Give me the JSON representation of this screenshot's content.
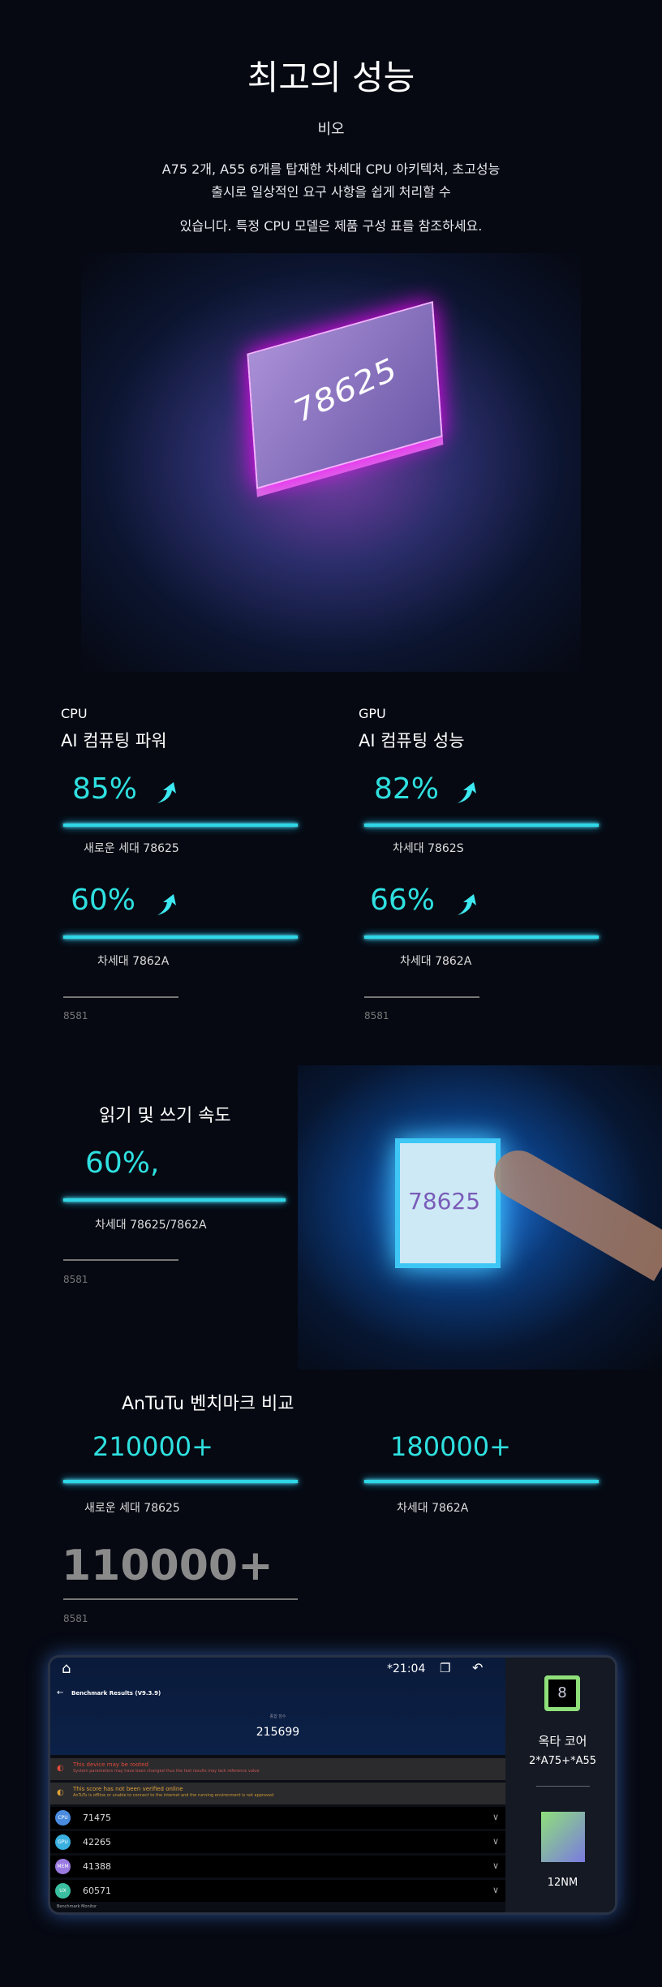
{
  "header": {
    "title": "최고의 성능",
    "subtitle": "비오",
    "para": [
      "A75 2개, A55 6개를 탑재한 차세대 CPU 아키텍처, 초고성능",
      "출시로 일상적인 요구 사항을 쉽게 처리할 수",
      "있습니다. 특정 CPU 모델은 제품 구성 표를 참조하세요."
    ],
    "chip_label": "78625"
  },
  "cpu": {
    "label": "CPU",
    "title": "AI 컴퓨팅 파워",
    "items": [
      {
        "value": "85%",
        "name": "새로운 세대 78625"
      },
      {
        "value": "60%",
        "name": "차세대 7862A"
      }
    ],
    "footer": "8581"
  },
  "gpu": {
    "label": "GPU",
    "title": "AI 컴퓨팅 성능",
    "items": [
      {
        "value": "82%",
        "name": "차세대 7862S"
      },
      {
        "value": "66%",
        "name": "차세대 7862A"
      }
    ],
    "footer": "8581"
  },
  "rw": {
    "title": "읽기 및 쓰기 속도",
    "value": "60%,",
    "name": "차세대 78625/7862A",
    "footer": "8581",
    "chip_label": "78625"
  },
  "antutu": {
    "title": "AnTuTu 벤치마크 비교",
    "items": [
      {
        "value": "210000+",
        "name": "새로운 세대 78625"
      },
      {
        "value": "180000+",
        "name": "차세대 7862A"
      }
    ],
    "baseline": "110000+",
    "footer": "8581"
  },
  "device": {
    "time": "*21:04",
    "screen_title": "Benchmark Results (V9.3.9)",
    "total_label": "종합 점수",
    "total": "215699",
    "warnings": [
      {
        "title": "This device may be rooted",
        "text": "System parameters may have been changed thus the test results may lack reference value",
        "color": "#e04a3a"
      },
      {
        "title": "This score has not been verified online",
        "text": "AnTuTu is offline or unable to connect to the internet and the running environment is not approved",
        "color": "#e0a23a"
      }
    ],
    "rows": [
      {
        "icon": "CPU",
        "value": "71475",
        "color": "#4a8be0"
      },
      {
        "icon": "GPU",
        "value": "42265",
        "color": "#3ab0e0"
      },
      {
        "icon": "MEM",
        "value": "41388",
        "color": "#9a7ae0"
      },
      {
        "icon": "UX",
        "value": "60571",
        "color": "#3ac0a0"
      }
    ],
    "footer": "Benchmark Monitor",
    "cores": "8",
    "cores_label": "옥타 코어",
    "cores_spec": "2*A75+*A55",
    "process": "12NM"
  }
}
